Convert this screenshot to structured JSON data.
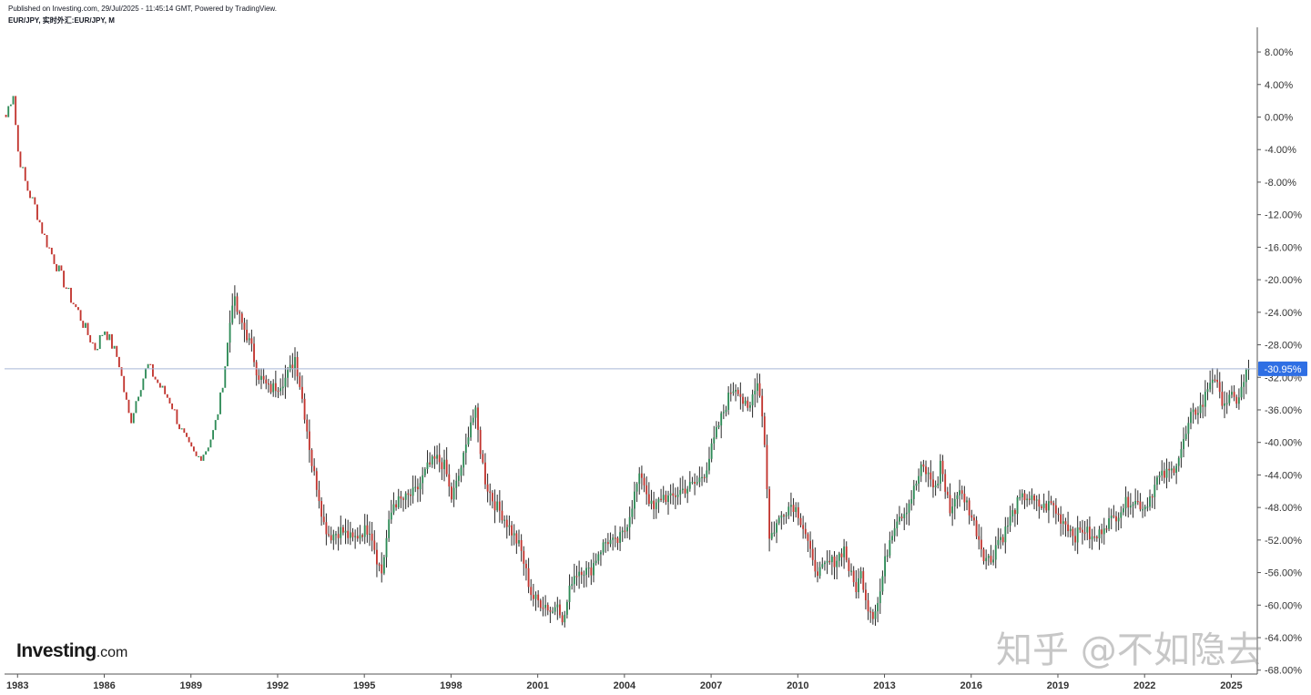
{
  "header": {
    "published": "Published on Investing.com, 29/Jul/2025 - 11:45:14 GMT, Powered by TradingView.",
    "symbol": "EUR/JPY, 实时外汇:EUR/JPY, M"
  },
  "logo": {
    "name": "Investing",
    "suffix": ".com"
  },
  "watermark": "知乎 @不如隐去",
  "colors": {
    "up": "#2e8b57",
    "down": "#c2352f",
    "axis": "#555555",
    "current_line": "#a9b8d6",
    "current_badge": "#2f6fe4",
    "background": "#ffffff"
  },
  "chart_data": {
    "type": "candlestick",
    "interval": "M",
    "ylim": [
      -68,
      10
    ],
    "y_unit": "%",
    "y_ticks": [
      "8.00%",
      "4.00%",
      "0.00%",
      "-4.00%",
      "-8.00%",
      "-12.00%",
      "-16.00%",
      "-20.00%",
      "-24.00%",
      "-28.00%",
      "-32.00%",
      "-36.00%",
      "-40.00%",
      "-44.00%",
      "-48.00%",
      "-52.00%",
      "-56.00%",
      "-60.00%",
      "-64.00%",
      "-68.00%"
    ],
    "x_ticks": [
      "1983",
      "1986",
      "1989",
      "1992",
      "1995",
      "1998",
      "2001",
      "2004",
      "2007",
      "2010",
      "2013",
      "2016",
      "2019",
      "2022",
      "2025"
    ],
    "xlim": [
      1982.55,
      2025.9
    ],
    "current": {
      "value": -30.95,
      "label": "-30.95%"
    },
    "series_anchors": [
      [
        1982.6,
        0.0
      ],
      [
        1982.7,
        1.5
      ],
      [
        1982.85,
        3.0
      ],
      [
        1983.0,
        -4.0
      ],
      [
        1983.3,
        -8.5
      ],
      [
        1983.6,
        -11.0
      ],
      [
        1983.9,
        -14.5
      ],
      [
        1984.2,
        -17.0
      ],
      [
        1984.5,
        -19.5
      ],
      [
        1984.8,
        -22.0
      ],
      [
        1985.1,
        -24.0
      ],
      [
        1985.4,
        -26.5
      ],
      [
        1985.7,
        -28.5
      ],
      [
        1986.0,
        -26.0
      ],
      [
        1986.2,
        -27.5
      ],
      [
        1986.5,
        -30.0
      ],
      [
        1986.7,
        -34.0
      ],
      [
        1986.9,
        -37.5
      ],
      [
        1987.2,
        -33.5
      ],
      [
        1987.5,
        -30.5
      ],
      [
        1987.9,
        -33.0
      ],
      [
        1988.3,
        -35.0
      ],
      [
        1988.6,
        -38.0
      ],
      [
        1988.9,
        -40.5
      ],
      [
        1989.2,
        -42.0
      ],
      [
        1989.5,
        -41.0
      ],
      [
        1989.8,
        -38.5
      ],
      [
        1990.0,
        -35.0
      ],
      [
        1990.2,
        -30.0
      ],
      [
        1990.45,
        -22.0
      ],
      [
        1990.65,
        -24.5
      ],
      [
        1990.9,
        -26.5
      ],
      [
        1991.1,
        -28.5
      ],
      [
        1991.3,
        -31.5
      ],
      [
        1991.7,
        -33.5
      ],
      [
        1992.0,
        -33.0
      ],
      [
        1992.3,
        -32.0
      ],
      [
        1992.5,
        -30.5
      ],
      [
        1992.6,
        -29.5
      ],
      [
        1992.8,
        -33.5
      ],
      [
        1993.0,
        -38.0
      ],
      [
        1993.2,
        -43.0
      ],
      [
        1993.4,
        -46.0
      ],
      [
        1993.6,
        -50.0
      ],
      [
        1993.8,
        -51.5
      ],
      [
        1994.2,
        -50.8
      ],
      [
        1994.6,
        -52.0
      ],
      [
        1994.9,
        -51.0
      ],
      [
        1995.2,
        -50.5
      ],
      [
        1995.45,
        -54.5
      ],
      [
        1995.6,
        -56.0
      ],
      [
        1995.8,
        -51.0
      ],
      [
        1996.0,
        -47.5
      ],
      [
        1996.4,
        -47.0
      ],
      [
        1996.8,
        -46.0
      ],
      [
        1997.2,
        -43.0
      ],
      [
        1997.5,
        -42.0
      ],
      [
        1997.8,
        -43.0
      ],
      [
        1998.0,
        -47.0
      ],
      [
        1998.2,
        -45.0
      ],
      [
        1998.5,
        -41.0
      ],
      [
        1998.65,
        -37.5
      ],
      [
        1998.85,
        -36.5
      ],
      [
        1999.0,
        -40.5
      ],
      [
        1999.2,
        -45.0
      ],
      [
        1999.5,
        -47.5
      ],
      [
        1999.8,
        -49.0
      ],
      [
        2000.1,
        -51.0
      ],
      [
        2000.4,
        -53.0
      ],
      [
        2000.6,
        -56.0
      ],
      [
        2000.8,
        -59.0
      ],
      [
        2001.0,
        -59.5
      ],
      [
        2001.3,
        -60.0
      ],
      [
        2001.5,
        -61.0
      ],
      [
        2001.7,
        -59.0
      ],
      [
        2001.85,
        -62.5
      ],
      [
        2002.0,
        -60.0
      ],
      [
        2002.2,
        -56.5
      ],
      [
        2002.5,
        -55.5
      ],
      [
        2002.8,
        -56.0
      ],
      [
        2003.1,
        -53.5
      ],
      [
        2003.4,
        -52.0
      ],
      [
        2003.7,
        -52.5
      ],
      [
        2004.0,
        -51.0
      ],
      [
        2004.2,
        -48.5
      ],
      [
        2004.45,
        -45.0
      ],
      [
        2004.6,
        -44.0
      ],
      [
        2004.8,
        -46.5
      ],
      [
        2005.0,
        -48.5
      ],
      [
        2005.3,
        -46.5
      ],
      [
        2005.6,
        -47.0
      ],
      [
        2005.9,
        -46.0
      ],
      [
        2006.2,
        -45.5
      ],
      [
        2006.5,
        -45.0
      ],
      [
        2006.8,
        -43.5
      ],
      [
        2007.0,
        -41.0
      ],
      [
        2007.25,
        -38.0
      ],
      [
        2007.5,
        -35.5
      ],
      [
        2007.7,
        -33.5
      ],
      [
        2007.9,
        -33.0
      ],
      [
        2008.1,
        -35.0
      ],
      [
        2008.3,
        -36.5
      ],
      [
        2008.5,
        -33.0
      ],
      [
        2008.65,
        -32.5
      ],
      [
        2008.8,
        -38.0
      ],
      [
        2008.9,
        -42.0
      ],
      [
        2009.0,
        -52.0
      ],
      [
        2009.2,
        -50.5
      ],
      [
        2009.5,
        -48.5
      ],
      [
        2009.8,
        -47.5
      ],
      [
        2010.0,
        -48.5
      ],
      [
        2010.3,
        -51.5
      ],
      [
        2010.5,
        -55.0
      ],
      [
        2010.8,
        -56.0
      ],
      [
        2011.0,
        -55.0
      ],
      [
        2011.3,
        -54.5
      ],
      [
        2011.6,
        -53.0
      ],
      [
        2011.8,
        -56.0
      ],
      [
        2012.0,
        -58.0
      ],
      [
        2012.2,
        -56.0
      ],
      [
        2012.4,
        -60.0
      ],
      [
        2012.6,
        -61.0
      ],
      [
        2012.8,
        -59.5
      ],
      [
        2013.0,
        -55.0
      ],
      [
        2013.2,
        -51.5
      ],
      [
        2013.45,
        -49.0
      ],
      [
        2013.7,
        -48.5
      ],
      [
        2013.9,
        -47.0
      ],
      [
        2014.1,
        -45.0
      ],
      [
        2014.3,
        -43.0
      ],
      [
        2014.6,
        -44.5
      ],
      [
        2014.8,
        -46.0
      ],
      [
        2014.95,
        -42.0
      ],
      [
        2015.1,
        -46.0
      ],
      [
        2015.3,
        -48.5
      ],
      [
        2015.5,
        -46.0
      ],
      [
        2015.8,
        -47.0
      ],
      [
        2016.0,
        -49.0
      ],
      [
        2016.2,
        -51.0
      ],
      [
        2016.45,
        -54.0
      ],
      [
        2016.7,
        -54.5
      ],
      [
        2016.9,
        -52.0
      ],
      [
        2017.1,
        -51.5
      ],
      [
        2017.4,
        -49.0
      ],
      [
        2017.6,
        -47.5
      ],
      [
        2017.9,
        -46.5
      ],
      [
        2018.2,
        -47.5
      ],
      [
        2018.5,
        -48.0
      ],
      [
        2018.8,
        -47.5
      ],
      [
        2019.0,
        -49.0
      ],
      [
        2019.3,
        -50.0
      ],
      [
        2019.6,
        -51.5
      ],
      [
        2019.9,
        -50.5
      ],
      [
        2020.2,
        -52.0
      ],
      [
        2020.4,
        -51.5
      ],
      [
        2020.6,
        -50.0
      ],
      [
        2020.9,
        -49.5
      ],
      [
        2021.2,
        -48.0
      ],
      [
        2021.5,
        -47.0
      ],
      [
        2021.8,
        -47.5
      ],
      [
        2022.0,
        -48.0
      ],
      [
        2022.2,
        -46.5
      ],
      [
        2022.45,
        -44.5
      ],
      [
        2022.7,
        -44.0
      ],
      [
        2022.95,
        -43.5
      ],
      [
        2023.2,
        -41.5
      ],
      [
        2023.4,
        -39.5
      ],
      [
        2023.6,
        -37.0
      ],
      [
        2023.8,
        -36.0
      ],
      [
        2024.0,
        -35.5
      ],
      [
        2024.2,
        -33.0
      ],
      [
        2024.4,
        -31.5
      ],
      [
        2024.6,
        -34.5
      ],
      [
        2024.8,
        -35.0
      ],
      [
        2025.0,
        -34.5
      ],
      [
        2025.15,
        -35.0
      ],
      [
        2025.3,
        -34.0
      ],
      [
        2025.45,
        -32.5
      ],
      [
        2025.56,
        -30.95
      ]
    ]
  }
}
